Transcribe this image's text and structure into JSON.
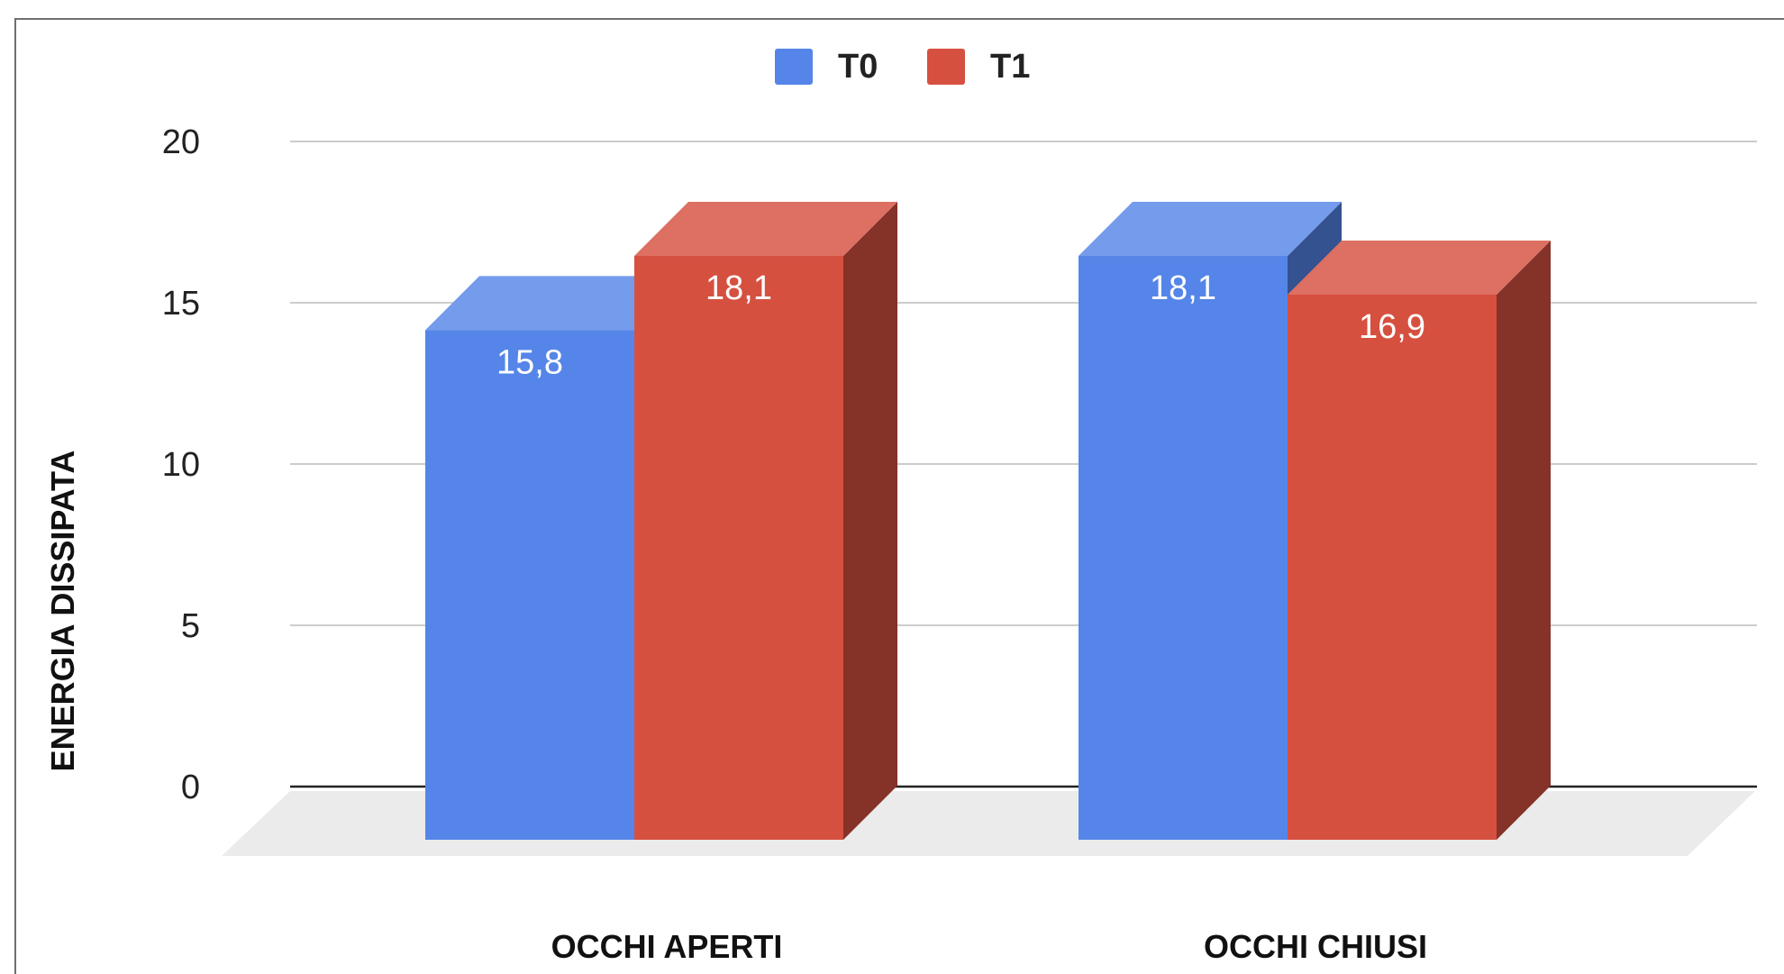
{
  "chart_data": {
    "type": "bar",
    "style": "3d",
    "title": "",
    "categories": [
      "OCCHI APERTI",
      "OCCHI CHIUSI"
    ],
    "series": [
      {
        "name": "T0",
        "color": "#5585e8",
        "values": [
          15.8,
          18.1
        ],
        "labels": [
          "15,8",
          "18,1"
        ]
      },
      {
        "name": "T1",
        "color": "#d65040",
        "values": [
          18.1,
          16.9
        ],
        "labels": [
          "18,1",
          "16,9"
        ]
      }
    ],
    "xlabel": "",
    "ylabel": "ENERGIA DISSIPATA",
    "ylim": [
      0,
      20
    ],
    "yticks": [
      0,
      5,
      10,
      15,
      20
    ],
    "ytick_labels": [
      "0",
      "5",
      "10",
      "15",
      "20"
    ],
    "grid": true,
    "legend_position": "top-center"
  }
}
